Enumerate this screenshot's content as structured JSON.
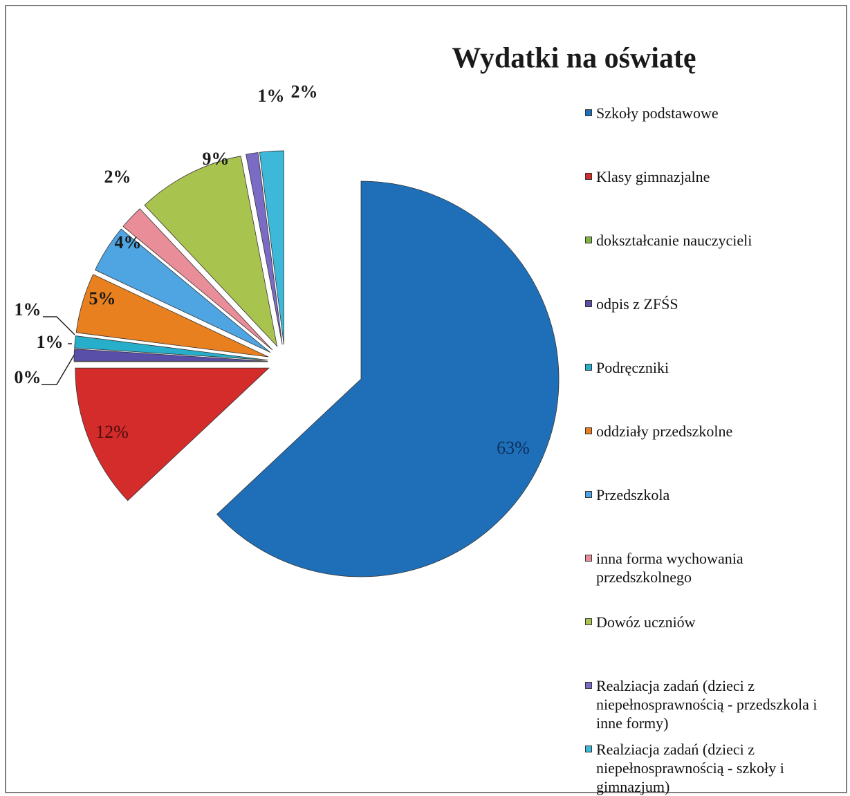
{
  "chart_data": {
    "type": "pie",
    "title": "Wydatki na oświatę",
    "categories": [
      "Szkoły podstawowe",
      "Klasy gimnazjalne",
      "dokształcanie nauczycieli",
      "odpis z ZFŚS",
      "Podręczniki",
      "oddziały przedszkolne",
      "Przedszkola",
      "inna forma wychowania przedszkolnego",
      "Dowóz uczniów",
      "Realziacja zadań (dzieci z niepełnosprawnością - przedszkola i inne formy)",
      "Realziacja zadań (dzieci z niepełnosprawnością - szkoły i gimnazjum)"
    ],
    "values": [
      63,
      12,
      0,
      1,
      1,
      5,
      4,
      2,
      9,
      1,
      2
    ],
    "value_labels": [
      "63%",
      "12%",
      "0%",
      "1%",
      "1%",
      "5%",
      "4%",
      "2%",
      "9%",
      "1%",
      "2%"
    ],
    "colors": [
      "#1f6fb8",
      "#d42b2b",
      "#7cb342",
      "#5a4fa8",
      "#27aecb",
      "#e8801f",
      "#4ea5e2",
      "#e98e98",
      "#a8c34e",
      "#7a6cc4",
      "#3db8d9"
    ],
    "legend": "right"
  }
}
